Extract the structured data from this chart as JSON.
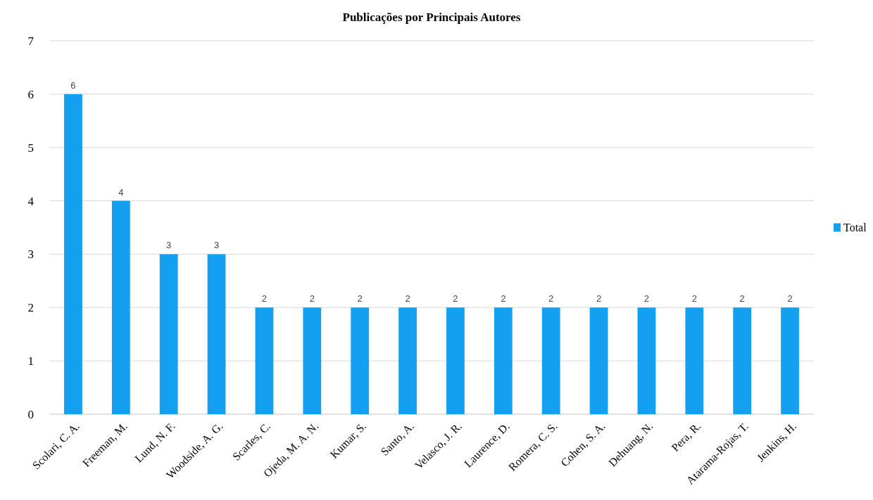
{
  "chart_data": {
    "type": "bar",
    "title": "Publicações por Principais Autores",
    "categories": [
      "Scolari, C. A.",
      "Freeman, M.",
      "Lund, N. F.",
      "Woodside, A. G.",
      "Scarles, C.",
      "Ojeda, M. A. N.",
      "Kumar, S.",
      "Santo, A.",
      "Velasco, J. R.",
      "Laurence, D.",
      "Romera, C. S.",
      "Cohen, S. A.",
      "Dehuang, N.",
      "Pera, R.",
      "Atarama-Rojas, T.",
      "Jenkins, H."
    ],
    "series": [
      {
        "name": "Total",
        "color": "#14a0f0",
        "values": [
          6,
          4,
          3,
          3,
          2,
          2,
          2,
          2,
          2,
          2,
          2,
          2,
          2,
          2,
          2,
          2
        ]
      }
    ],
    "ylim": [
      0,
      7
    ],
    "yticks": [
      0,
      1,
      2,
      3,
      4,
      5,
      6,
      7
    ],
    "grid": "y",
    "legend": "right",
    "data_labels": true
  }
}
